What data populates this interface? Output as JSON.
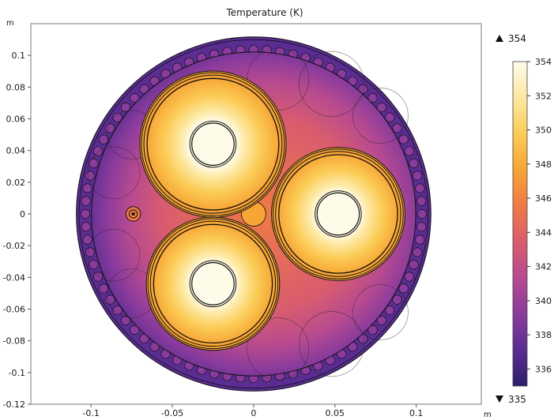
{
  "chart_data": {
    "type": "heatmap",
    "title": "Temperature (K)",
    "x_unit": "m",
    "y_unit": "m",
    "xlim": [
      -0.137,
      0.14
    ],
    "ylim": [
      -0.12,
      0.12
    ],
    "x_ticks": [
      -0.1,
      -0.05,
      0,
      0.05,
      0.1
    ],
    "x_tick_labels": [
      "-0.1",
      "-0.05",
      "0",
      "0.05",
      "0.1"
    ],
    "y_ticks": [
      0.1,
      0.08,
      0.06,
      0.04,
      0.02,
      0,
      -0.02,
      -0.04,
      -0.06,
      -0.08,
      -0.1,
      -0.12
    ],
    "y_tick_labels": [
      "0.1",
      "0.08",
      "0.06",
      "0.04",
      "0.02",
      "0",
      "-0.02",
      "-0.04",
      "-0.06",
      "-0.08",
      "-0.1",
      "-0.12"
    ],
    "color_range": {
      "max": 354,
      "min": 335,
      "max_label": "354",
      "min_label": "335"
    },
    "colorbar": {
      "ticks": [
        354,
        352,
        350,
        348,
        346,
        344,
        342,
        340,
        338,
        336
      ],
      "tick_labels": [
        "354",
        "352",
        "350",
        "348",
        "346",
        "344",
        "342",
        "340",
        "338",
        "336"
      ],
      "colors": [
        "#2e1f6b",
        "#5a2d92",
        "#8a3b9c",
        "#b64a90",
        "#d95c6e",
        "#ef7a45",
        "#f7a535",
        "#fbcc56",
        "#fde9a4",
        "#fffbe9"
      ]
    },
    "geometry": {
      "cable_outer_radius": 0.109,
      "armor_wire_ring_radius": 0.1035,
      "armor_wire_radius": 0.0028,
      "armor_wire_count": 80,
      "conductors": [
        {
          "name": "phase-top",
          "center": [
            -0.025,
            0.044
          ],
          "conductor_radius": 0.013,
          "insulation_radius": 0.042,
          "screen_radii": [
            0.0425,
            0.044,
            0.045
          ]
        },
        {
          "name": "phase-right",
          "center": [
            0.052,
            0.0
          ],
          "conductor_radius": 0.013,
          "insulation_radius": 0.038,
          "screen_radii": [
            0.0385,
            0.04,
            0.041
          ]
        },
        {
          "name": "phase-bottom",
          "center": [
            -0.025,
            -0.044
          ],
          "conductor_radius": 0.013,
          "insulation_radius": 0.038,
          "screen_radii": [
            0.0385,
            0.04,
            0.041
          ]
        }
      ],
      "fiber_center": [
        -0.074,
        0.0
      ],
      "fiber_radii": [
        0.0045,
        0.0025,
        0.001
      ],
      "center_filler": {
        "center": [
          0.0,
          0.0
        ],
        "radius": 0.0075
      }
    }
  }
}
